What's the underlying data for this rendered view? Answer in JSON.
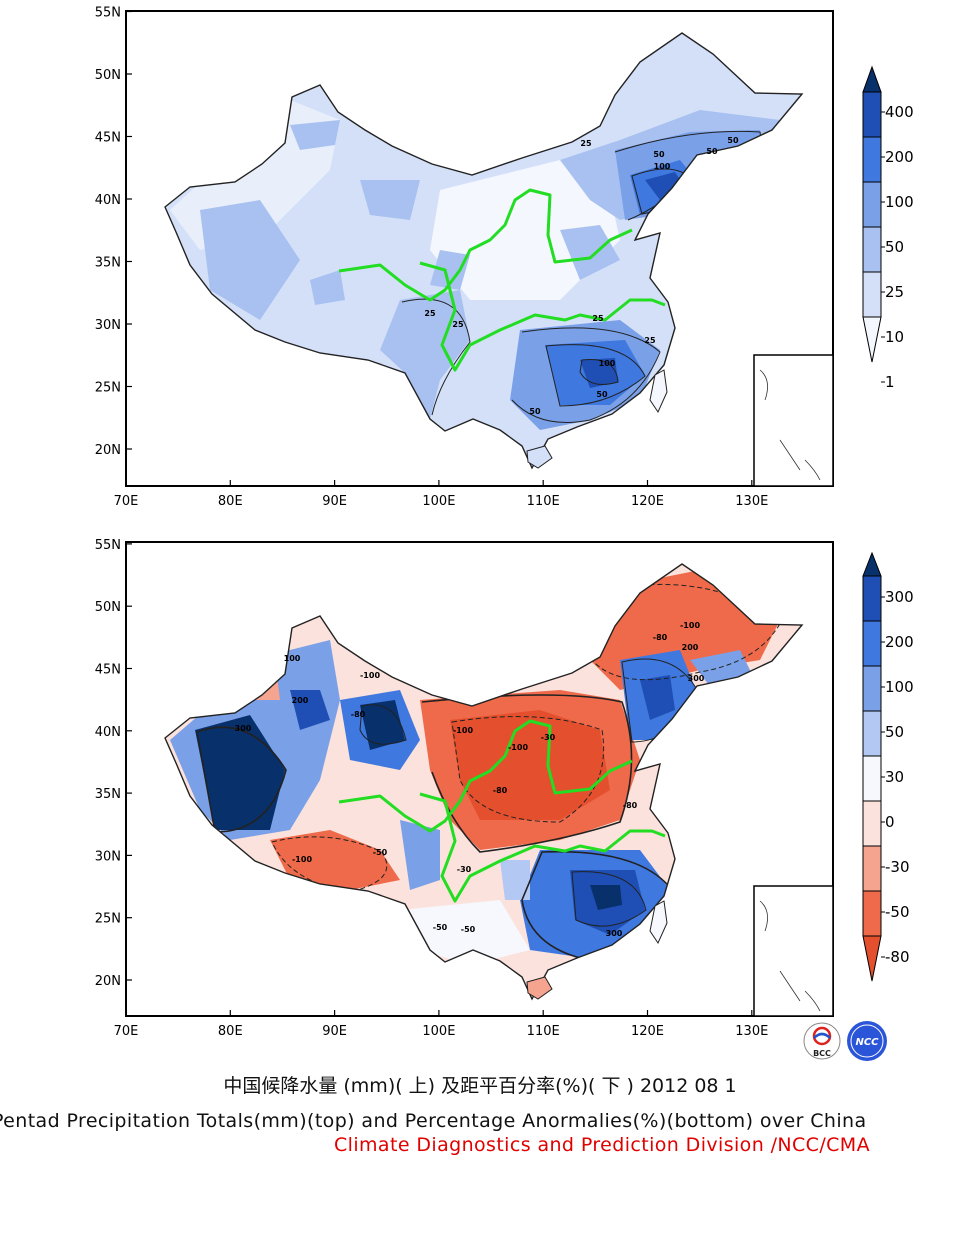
{
  "maps": [
    {
      "id": "top",
      "x_ticks": [
        "70E",
        "80E",
        "90E",
        "100E",
        "110E",
        "120E",
        "130E"
      ],
      "y_ticks": [
        "20N",
        "25N",
        "30N",
        "35N",
        "40N",
        "45N",
        "50N",
        "55N"
      ],
      "legend_labels": [
        "400",
        "200",
        "100",
        "50",
        "25",
        "10",
        "1"
      ],
      "legend_colors": [
        "#08306b",
        "#1f4fb4",
        "#3f78df",
        "#7aa0e8",
        "#a9c1f0",
        "#d3e0f8",
        "#f4f7fd"
      ],
      "contour_labels": [
        "25",
        "50",
        "100",
        "50",
        "50",
        "100",
        "50",
        "50",
        "25",
        "25",
        "25",
        "25"
      ]
    },
    {
      "id": "bottom",
      "x_ticks": [
        "70E",
        "80E",
        "90E",
        "100E",
        "110E",
        "120E",
        "130E"
      ],
      "y_ticks": [
        "20N",
        "25N",
        "30N",
        "35N",
        "40N",
        "45N",
        "50N",
        "55N"
      ],
      "legend_labels": [
        "300",
        "200",
        "100",
        "50",
        "30",
        "0",
        "-30",
        "-50",
        "-80"
      ],
      "legend_colors": [
        "#08306b",
        "#1f4fb4",
        "#3f78df",
        "#7aa0e8",
        "#b3c8f2",
        "#f6f8fd",
        "#fbe2dc",
        "#f5a48f",
        "#ee6a4a",
        "#e4502e"
      ],
      "contour_labels": [
        "300",
        "100",
        "200",
        "-100",
        "-100",
        "-80",
        "-100",
        "-80",
        "300",
        "-80",
        "-100",
        "-80",
        "300",
        "-50",
        "-30",
        "-100",
        "-50",
        "200",
        "-30",
        "-50"
      ]
    }
  ],
  "logos": {
    "bcc": "BCC",
    "ncc": "NCC"
  },
  "title_cn": "中国候降水量 (mm)( 上) 及距平百分率(%)( 下 ) 2012 08 1",
  "title_en": "Pentad Precipitation Totals(mm)(top) and Percentage Anormalies(%)(bottom) over China",
  "credit": "Climate Diagnostics and Prediction Division /NCC/CMA",
  "colors": {
    "river": "#22dd22",
    "credit": "#e10000",
    "frame": "#000000"
  }
}
